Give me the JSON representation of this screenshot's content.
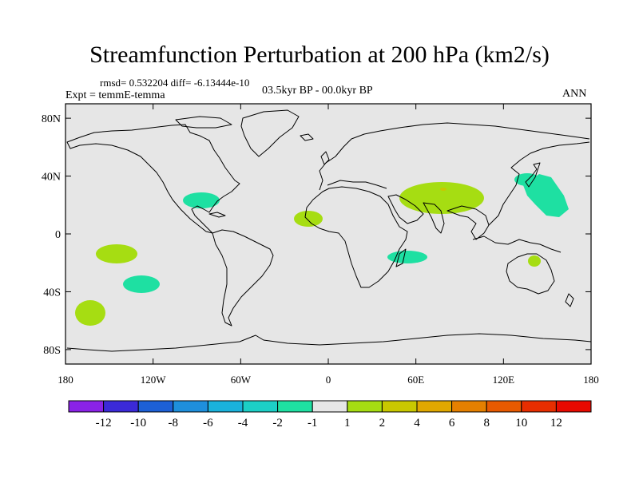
{
  "title": "Streamfunction Perturbation at 200 hPa (km2/s)",
  "stats": "rmsd= 0.532204 diff= -6.13444e-10",
  "experiment": "Expt = temmE-temma",
  "period": "03.5kyr BP - 00.0kyr BP",
  "season": "ANN",
  "axes": {
    "lat_labels": [
      "80N",
      "40N",
      "0",
      "40S",
      "80S"
    ],
    "lon_labels": [
      "180",
      "120W",
      "60W",
      "0",
      "60E",
      "120E",
      "180"
    ]
  },
  "colorbar": {
    "labels": [
      "-12",
      "-10",
      "-8",
      "-6",
      "-4",
      "-2",
      "-1",
      "1",
      "2",
      "4",
      "6",
      "8",
      "10",
      "12"
    ],
    "colors": [
      "#8a22e6",
      "#3b2ad8",
      "#1d60d6",
      "#1e8fdc",
      "#1ab2dc",
      "#1ccfc6",
      "#1ee0a2",
      "#e6e6e6",
      "#a6dd12",
      "#c9c800",
      "#e0a800",
      "#e58000",
      "#e85a00",
      "#e82e00",
      "#e80a00"
    ]
  },
  "colors": {
    "background": "#e6e6e6",
    "negative_anomaly": "#1ee0a2",
    "positive_anomaly": "#a6dd12",
    "positive_peak": "#c9c800"
  }
}
